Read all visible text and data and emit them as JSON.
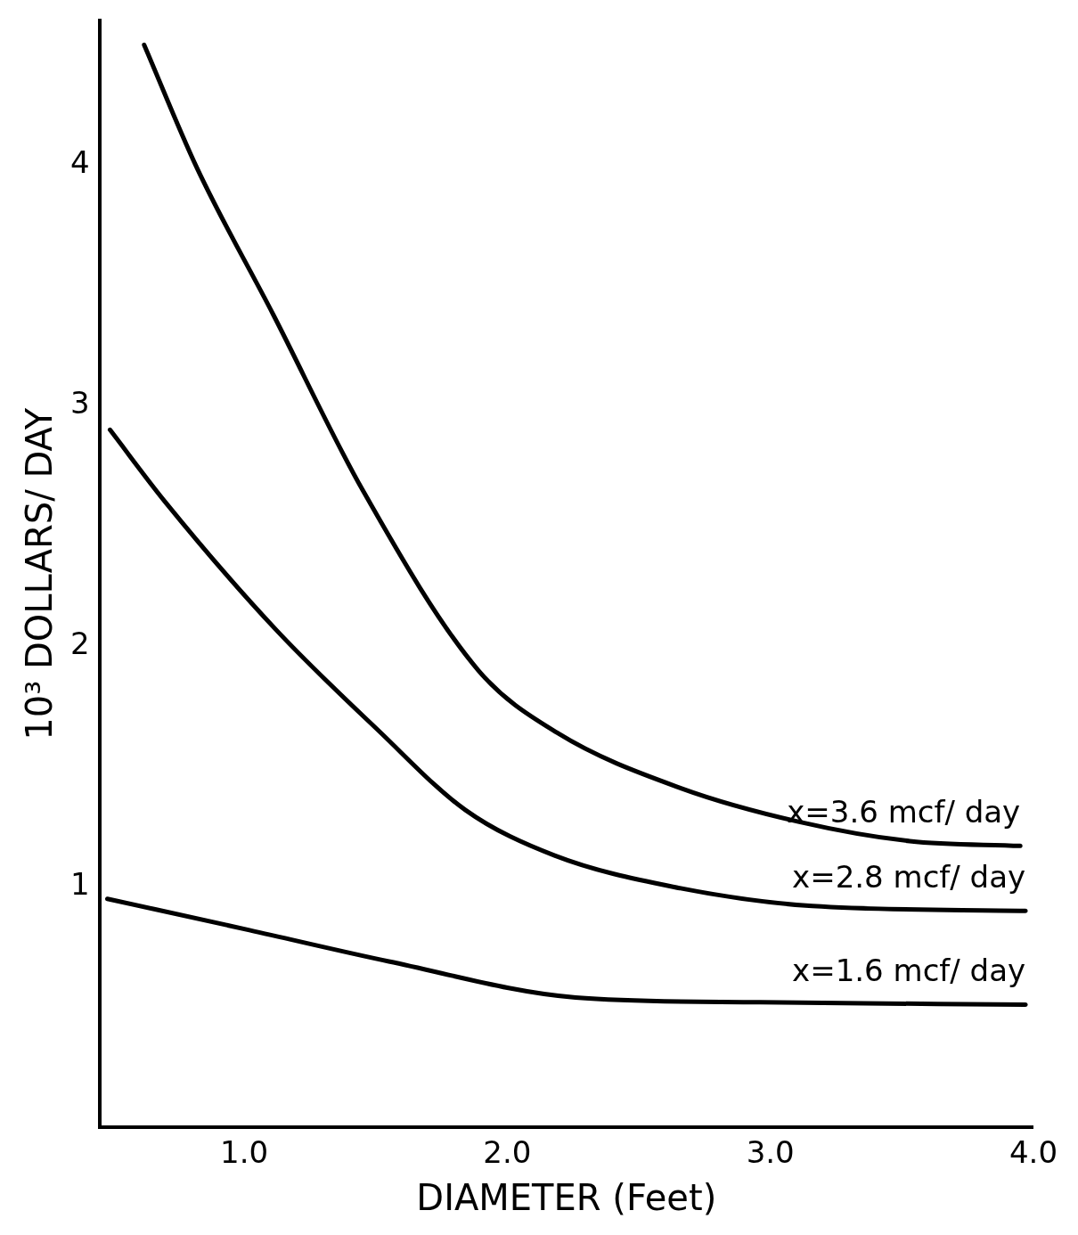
{
  "chart_data": {
    "type": "line",
    "xlabel": "DIAMETER (Feet)",
    "ylabel": "10³ DOLLARS/ DAY",
    "xlim": [
      0.45,
      4.0
    ],
    "ylim": [
      0,
      4.6
    ],
    "xticks": [
      {
        "value": 1,
        "label": "1.0"
      },
      {
        "value": 2,
        "label": "2.0"
      },
      {
        "value": 3,
        "label": "3.0"
      },
      {
        "value": 4,
        "label": "4.0"
      }
    ],
    "yticks": [
      1,
      2,
      3,
      4
    ],
    "grid": false,
    "legend": false,
    "marker": "none",
    "line_style": "solid",
    "series": [
      {
        "name": "x=3.6 mcf/ day",
        "color": "#000000",
        "x": [
          0.62,
          0.82,
          1.11,
          1.45,
          1.89,
          2.19,
          2.66,
          3.11,
          3.53,
          3.95
        ],
        "values": [
          4.5,
          3.99,
          3.38,
          2.65,
          1.9,
          1.64,
          1.41,
          1.27,
          1.19,
          1.17
        ]
      },
      {
        "name": "x=2.8 mcf/ day",
        "color": "#000000",
        "x": [
          0.49,
          0.7,
          1.12,
          1.51,
          1.84,
          2.18,
          2.63,
          3.16,
          3.97
        ],
        "values": [
          2.9,
          2.6,
          2.07,
          1.65,
          1.32,
          1.13,
          1.0,
          0.92,
          0.9
        ]
      },
      {
        "name": "x=1.6 mcf/ day",
        "color": "#000000",
        "x": [
          0.48,
          1.02,
          1.55,
          2.26,
          2.96,
          3.97
        ],
        "values": [
          0.95,
          0.82,
          0.69,
          0.54,
          0.52,
          0.51
        ]
      }
    ]
  }
}
